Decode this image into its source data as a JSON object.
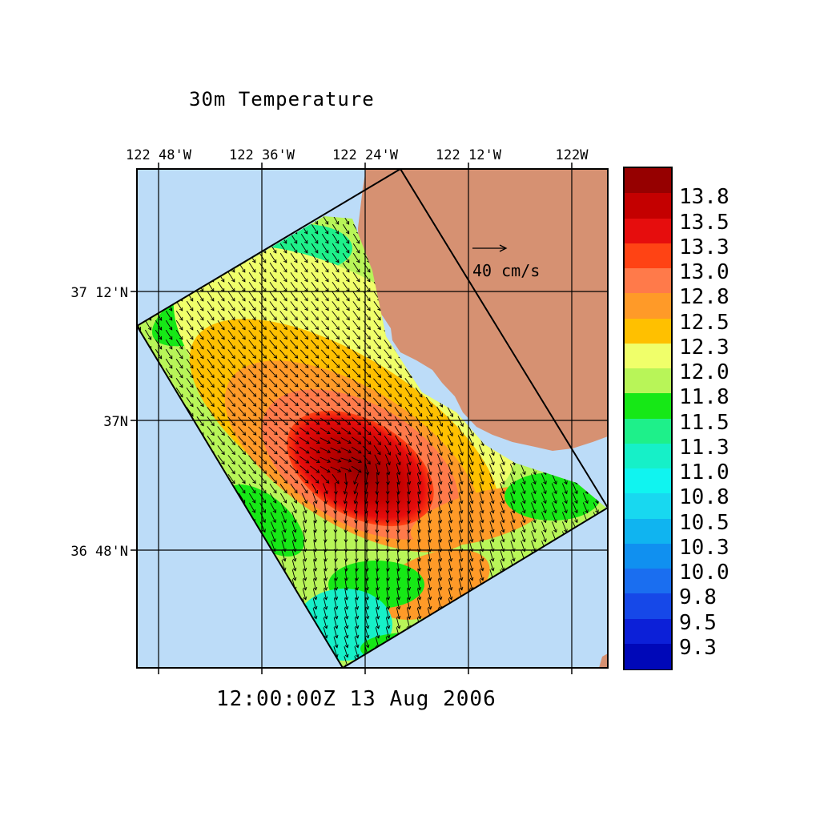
{
  "title": "30m Temperature",
  "timestamp": "12:00:00Z  13 Aug 2006",
  "lon_ticks": [
    {
      "label": "122 48'W",
      "lon": -122.8
    },
    {
      "label": "122 36'W",
      "lon": -122.6
    },
    {
      "label": "122 24'W",
      "lon": -122.4
    },
    {
      "label": "122 12'W",
      "lon": -122.2
    },
    {
      "label": "122W",
      "lon": -122.0
    }
  ],
  "lat_ticks": [
    {
      "label": "37 12'N",
      "lat": 37.2
    },
    {
      "label": "37N",
      "lat": 37.0
    },
    {
      "label": "36 48'N",
      "lat": 36.8
    }
  ],
  "reference_vector_label": "40 cm/s",
  "colors": {
    "ocean": "#bcdcf8",
    "land": "#d69172",
    "grid": "#000000"
  },
  "legend": [
    {
      "label": "13.8",
      "color": "#960000"
    },
    {
      "label": "13.5",
      "color": "#c40000"
    },
    {
      "label": "13.3",
      "color": "#e60d0d"
    },
    {
      "label": "13.0",
      "color": "#ff4314"
    },
    {
      "label": "12.8",
      "color": "#ff7a4a"
    },
    {
      "label": "12.5",
      "color": "#ff9a28"
    },
    {
      "label": "12.3",
      "color": "#ffc000"
    },
    {
      "label": "12.0",
      "color": "#f0ff6a"
    },
    {
      "label": "11.8",
      "color": "#b8f558"
    },
    {
      "label": "11.5",
      "color": "#16e816"
    },
    {
      "label": "11.3",
      "color": "#1ef08a"
    },
    {
      "label": "11.0",
      "color": "#16f0c8"
    },
    {
      "label": "10.8",
      "color": "#10f4f0"
    },
    {
      "label": "10.5",
      "color": "#18d8f0"
    },
    {
      "label": "10.3",
      "color": "#10b4f0"
    },
    {
      "label": "10.0",
      "color": "#1090f0"
    },
    {
      "label": "9.8",
      "color": "#1a6ef0"
    },
    {
      "label": "9.5",
      "color": "#1648e8"
    },
    {
      "label": "9.3",
      "color": "#0c20d8"
    },
    {
      "label": "",
      "color": "#0008b8"
    }
  ]
}
